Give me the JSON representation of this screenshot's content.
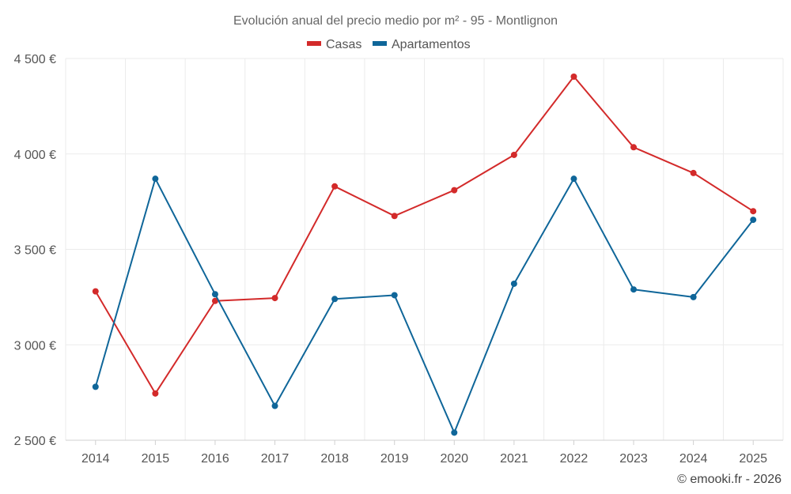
{
  "chart_data": {
    "type": "line",
    "title": "Evolución anual del precio medio por m² - 95 - Montlignon",
    "categories": [
      "2014",
      "2015",
      "2016",
      "2017",
      "2018",
      "2019",
      "2020",
      "2021",
      "2022",
      "2023",
      "2024",
      "2025"
    ],
    "series": [
      {
        "name": "Casas",
        "color": "#d32a2a",
        "values": [
          3280,
          2745,
          3230,
          3245,
          3830,
          3675,
          3810,
          3995,
          4405,
          4035,
          3900,
          3700
        ]
      },
      {
        "name": "Apartamentos",
        "color": "#0f6699",
        "values": [
          2780,
          3870,
          3265,
          2680,
          3240,
          3260,
          2540,
          3320,
          3870,
          3290,
          3250,
          3655
        ]
      }
    ],
    "y_ticks": [
      2500,
      3000,
      3500,
      4000,
      4500
    ],
    "y_tick_labels": [
      "2 500 €",
      "3 000 €",
      "3 500 €",
      "4 000 €",
      "4 500 €"
    ],
    "ylim": [
      2500,
      4500
    ],
    "xlabel": "",
    "ylabel": "",
    "grid": true,
    "legend_position": "top-center"
  },
  "credit": "© emooki.fr - 2026"
}
